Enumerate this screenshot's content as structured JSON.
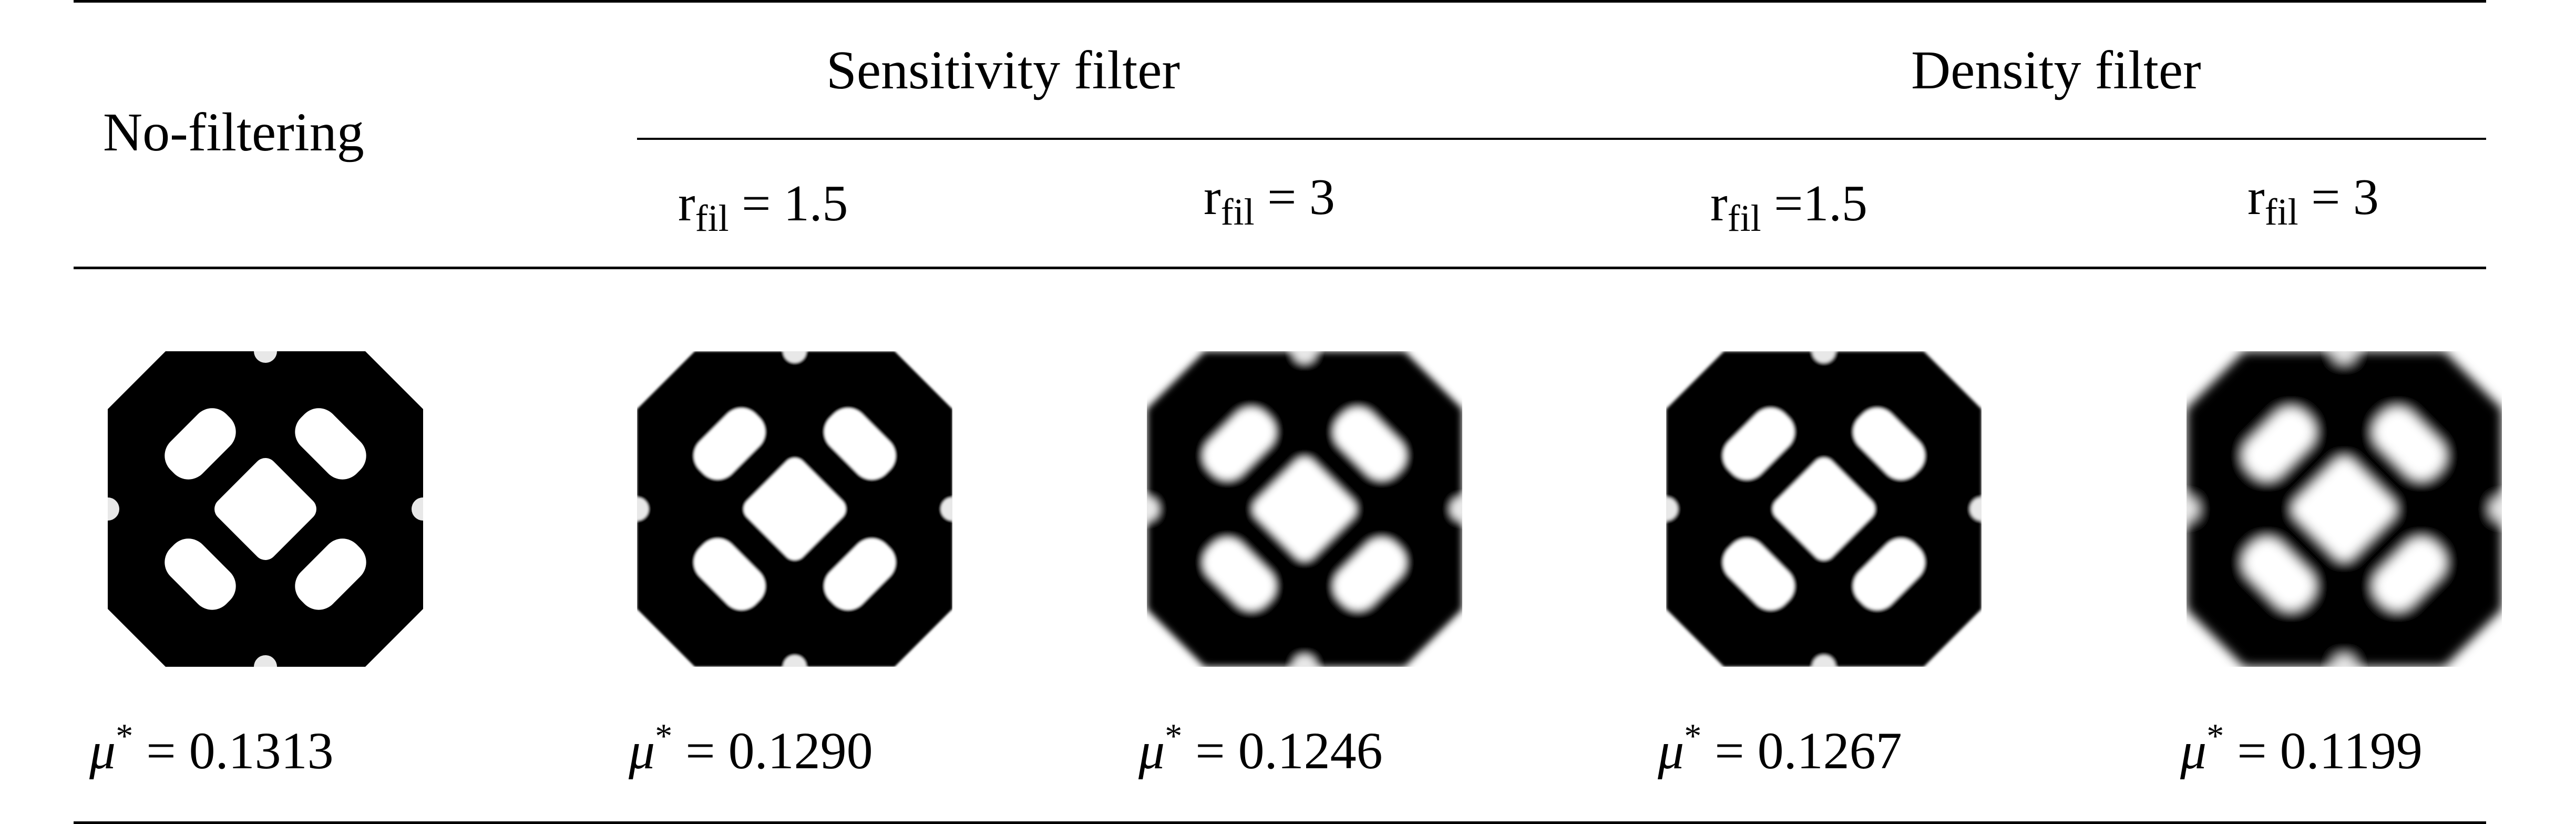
{
  "table": {
    "header": {
      "no_filtering": "No-filtering",
      "sensitivity_filter": "Sensitivity filter",
      "density_filter": "Density filter",
      "sub_columns": [
        {
          "symbol": "r",
          "subscript": "fil",
          "relation": "= 1.5"
        },
        {
          "symbol": "r",
          "subscript": "fil",
          "relation": "= 3"
        },
        {
          "symbol": "r",
          "subscript": "fil",
          "relation": "=1.5"
        },
        {
          "symbol": "r",
          "subscript": "fil",
          "relation": "= 3"
        }
      ]
    },
    "results": [
      {
        "symbol": "μ",
        "superscript": "*",
        "value": "= 0.1313",
        "blur": 0
      },
      {
        "symbol": "μ",
        "superscript": "*",
        "value": "= 0.1290",
        "blur": 2
      },
      {
        "symbol": "μ",
        "superscript": "*",
        "value": "= 0.1246",
        "blur": 7
      },
      {
        "symbol": "μ",
        "superscript": "*",
        "value": "= 0.1267",
        "blur": 3
      },
      {
        "symbol": "μ",
        "superscript": "*",
        "value": "= 0.1199",
        "blur": 10
      }
    ]
  }
}
